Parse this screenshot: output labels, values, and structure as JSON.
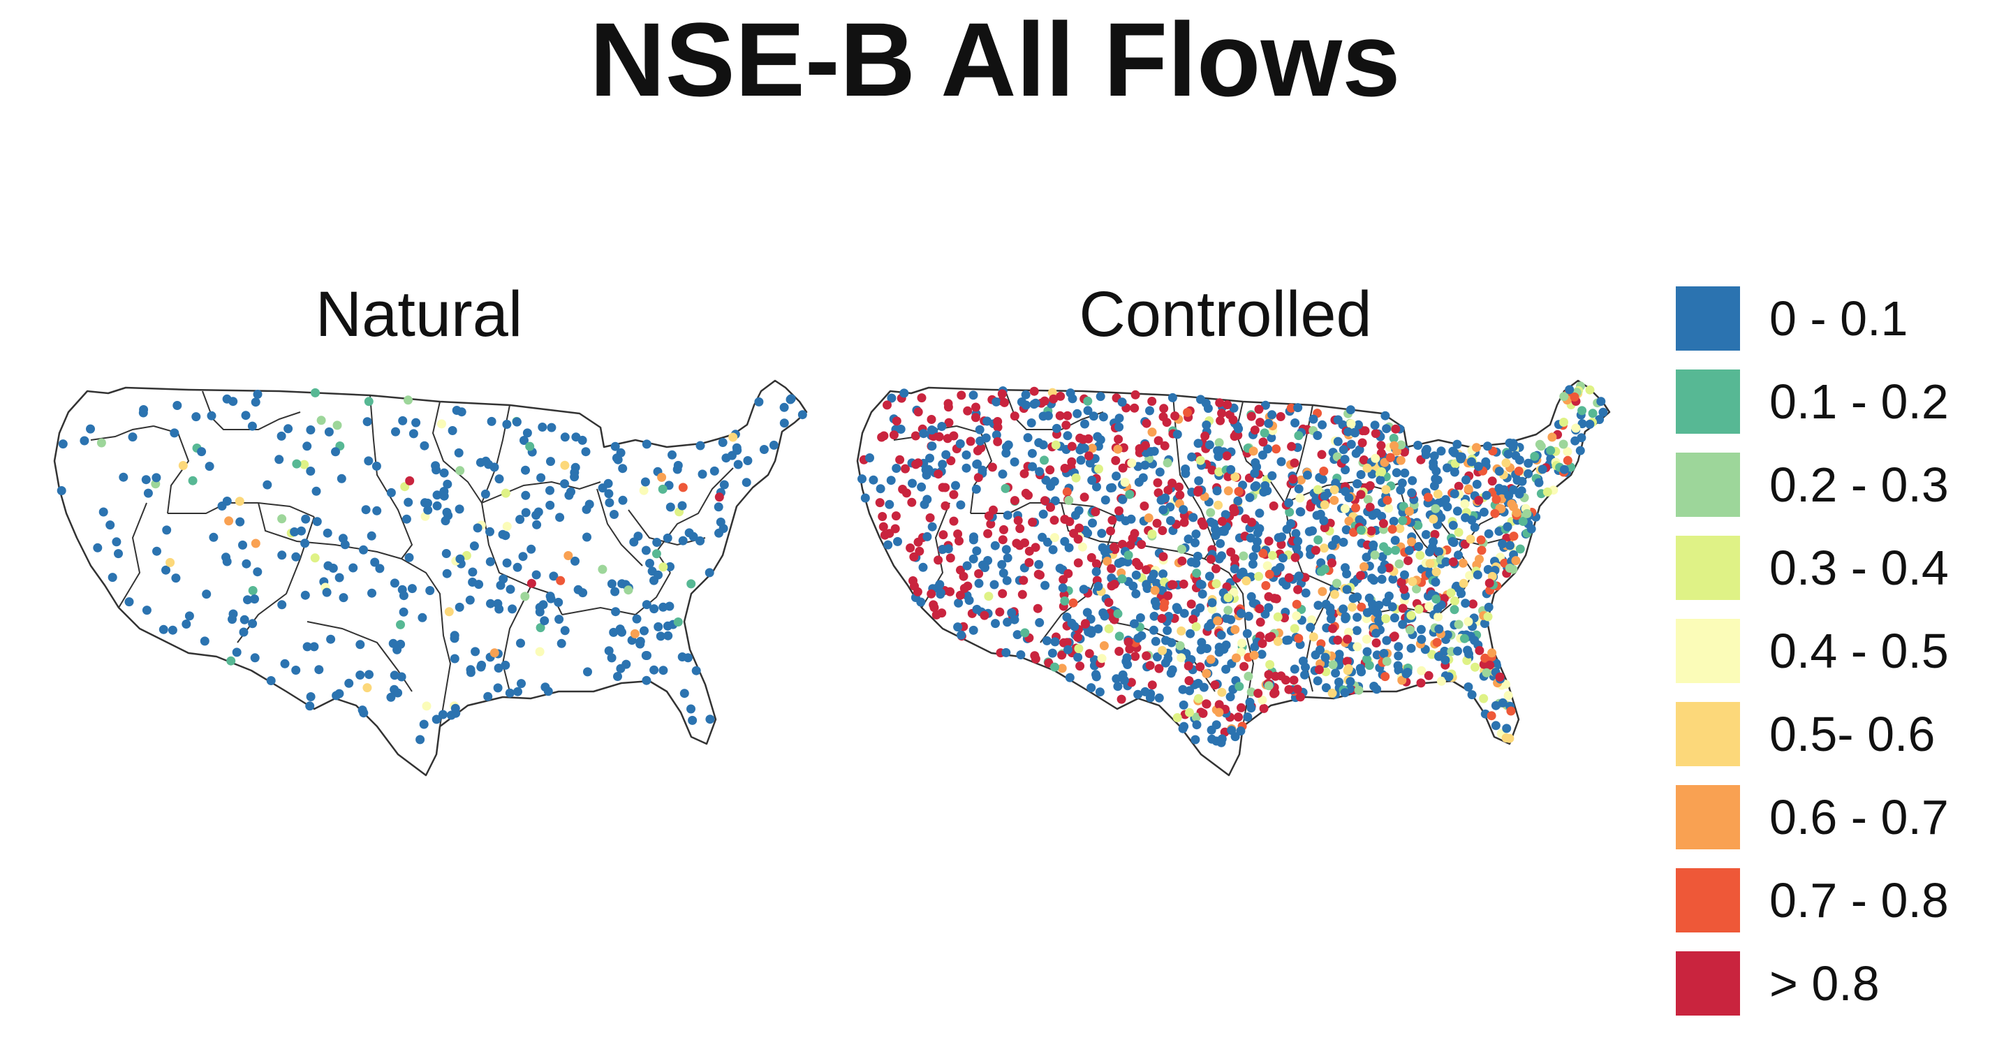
{
  "title": "NSE-B All Flows",
  "panels": [
    {
      "id": "natural",
      "title": "Natural"
    },
    {
      "id": "controlled",
      "title": "Controlled"
    }
  ],
  "legend": [
    {
      "label": "0 - 0.1",
      "color": "#2b73b0"
    },
    {
      "label": "0.1 - 0.2",
      "color": "#57b894"
    },
    {
      "label": "0.2 - 0.3",
      "color": "#9dd69a"
    },
    {
      "label": "0.3 - 0.4",
      "color": "#dff286"
    },
    {
      "label": "0.4 - 0.5",
      "color": "#fbfcb8"
    },
    {
      "label": "0.5- 0.6",
      "color": "#fcd87a"
    },
    {
      "label": "0.6 - 0.7",
      "color": "#f9a152"
    },
    {
      "label": "0.7 - 0.8",
      "color": "#ee5838"
    },
    {
      "label": "> 0.8",
      "color": "#c9243e"
    }
  ],
  "map": {
    "region": "Contiguous United States",
    "boundary_color": "#333333",
    "outline_style": "basin boundaries"
  }
}
